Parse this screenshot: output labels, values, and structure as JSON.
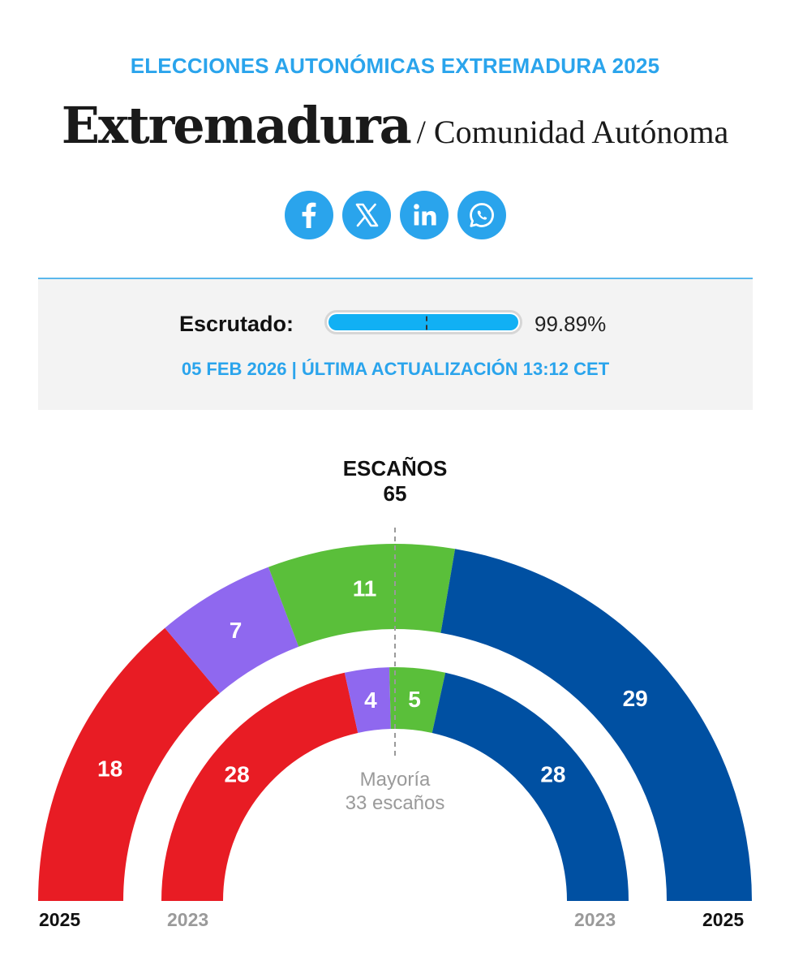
{
  "header": {
    "kicker": "ELECCIONES AUTONÓMICAS EXTREMADURA 2025",
    "title": "Extremadura",
    "subtitle": "/ Comunidad Autónoma"
  },
  "share": [
    {
      "name": "facebook-icon",
      "glyph": "f"
    },
    {
      "name": "x-icon",
      "glyph": "𝕏"
    },
    {
      "name": "linkedin-icon",
      "glyph": "in"
    },
    {
      "name": "whatsapp-icon",
      "glyph": "✆"
    }
  ],
  "scrutiny": {
    "label": "Escrutado:",
    "percent_text": "99.89%",
    "percent_value": 99.89,
    "updated": "05 FEB 2026 | ÚLTIMA ACTUALIZACIÓN 13:12 CET"
  },
  "seats": {
    "title": "ESCAÑOS",
    "total": "65"
  },
  "majority": {
    "line1": "Mayoría",
    "line2": "33 escaños"
  },
  "year_labels": {
    "outer_left": "2025",
    "inner_left": "2023",
    "inner_right": "2023",
    "outer_right": "2025"
  },
  "chart_data": {
    "type": "hemicycle",
    "total_seats": 65,
    "majority_seats": 33,
    "rings": [
      {
        "name": "2025",
        "ring": "outer",
        "parties": [
          {
            "seats": 18,
            "color": "#e81c24"
          },
          {
            "seats": 7,
            "color": "#8f68ef"
          },
          {
            "seats": 11,
            "color": "#5abf3a"
          },
          {
            "seats": 29,
            "color": "#0050a2"
          }
        ]
      },
      {
        "name": "2023",
        "ring": "inner",
        "parties": [
          {
            "seats": 28,
            "color": "#e81c24"
          },
          {
            "seats": 4,
            "color": "#8f68ef"
          },
          {
            "seats": 5,
            "color": "#5abf3a"
          },
          {
            "seats": 28,
            "color": "#0050a2"
          }
        ]
      }
    ]
  }
}
